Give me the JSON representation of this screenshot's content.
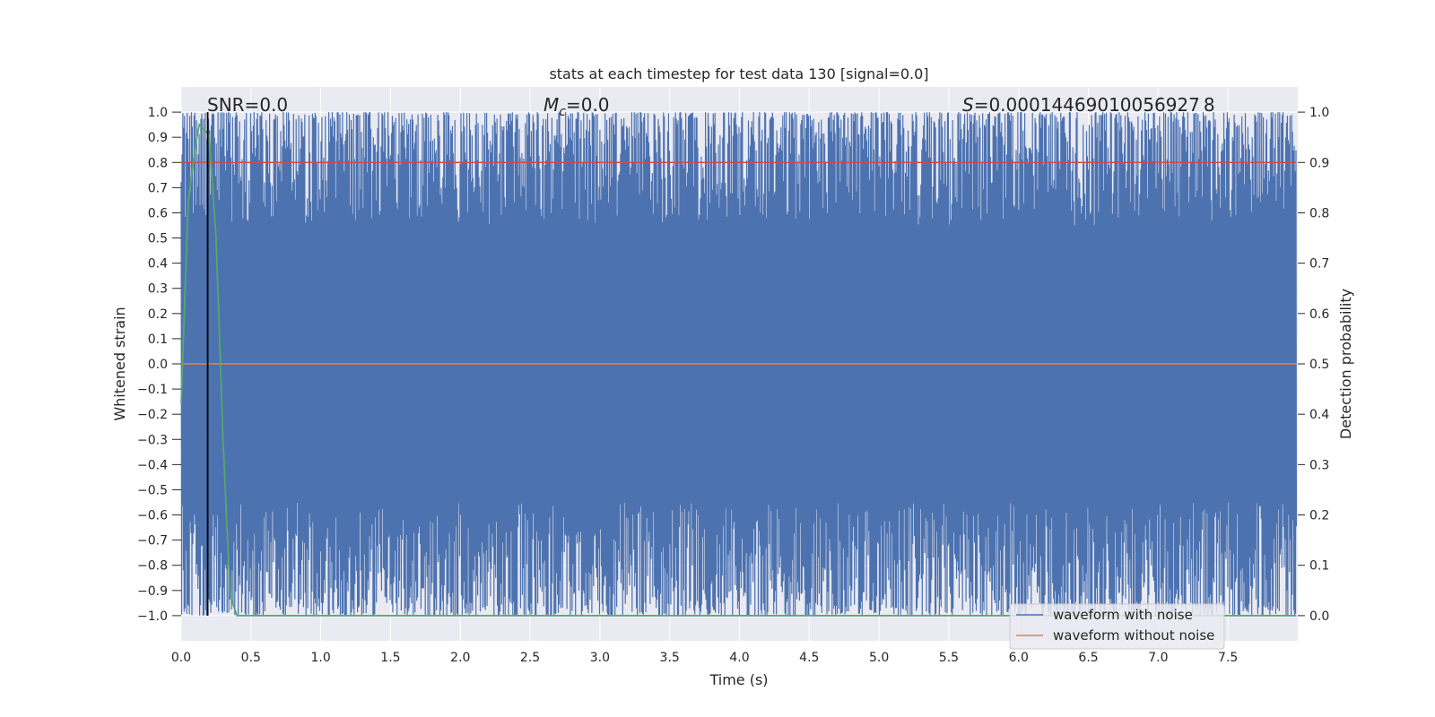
{
  "chart_data": {
    "type": "line",
    "title": "stats at each timestep for test data 130 [signal=0.0]",
    "xlabel": "Time (s)",
    "ylabel_left": "Whitened strain",
    "ylabel_right": "Detection probability",
    "xlim": [
      0.0,
      8.0
    ],
    "ylim_left": [
      -1.1,
      1.1
    ],
    "ylim_right": [
      -0.05,
      1.05
    ],
    "x_ticks": [
      "0.0",
      "0.5",
      "1.0",
      "1.5",
      "2.0",
      "2.5",
      "3.0",
      "3.5",
      "4.0",
      "4.5",
      "5.0",
      "5.5",
      "6.0",
      "6.5",
      "7.0",
      "7.5"
    ],
    "y_ticks_left": [
      "1.0",
      "0.9",
      "0.8",
      "0.7",
      "0.6",
      "0.5",
      "0.4",
      "0.3",
      "0.2",
      "0.1",
      "0.0",
      "−0.1",
      "−0.2",
      "−0.3",
      "−0.4",
      "−0.5",
      "−0.6",
      "−0.7",
      "−0.8",
      "−0.9",
      "−1.0"
    ],
    "y_ticks_right": [
      "1.0",
      "0.9",
      "0.8",
      "0.7",
      "0.6",
      "0.5",
      "0.4",
      "0.3",
      "0.2",
      "0.1",
      "0.0"
    ],
    "grid": true,
    "legend_placement": "lower-right",
    "legend": [
      {
        "label": "waveform with noise",
        "color": "#4c72b0"
      },
      {
        "label": "waveform without noise",
        "color": "#dd8452"
      }
    ],
    "annotations": {
      "snr": {
        "prefix": "SNR=",
        "value": "0.0"
      },
      "mc": {
        "symbol": "M",
        "subscript": "c",
        "value": "=0.0"
      },
      "s": {
        "symbol": "S",
        "value": "=0.00014469010056927 8"
      }
    },
    "vertical_line_x": 0.19,
    "threshold_right": 0.9,
    "series": [
      {
        "name": "waveform with noise",
        "color": "#4c72b0",
        "kind": "noise",
        "amplitude_range": [
          -1.0,
          1.0
        ],
        "x_range": [
          0.0,
          7.99
        ]
      },
      {
        "name": "waveform without noise",
        "color": "#dd8452",
        "kind": "constant",
        "value": 0.0,
        "x_range": [
          0.0,
          7.99
        ]
      },
      {
        "name": "detection probability",
        "color": "#55a868",
        "axis": "right",
        "x": [
          0.0,
          0.05,
          0.1,
          0.13,
          0.2,
          0.25,
          0.3,
          0.35,
          0.4,
          7.99
        ],
        "y": [
          0.42,
          0.82,
          0.93,
          0.975,
          0.955,
          0.75,
          0.35,
          0.04,
          0.0,
          0.0
        ]
      }
    ]
  }
}
